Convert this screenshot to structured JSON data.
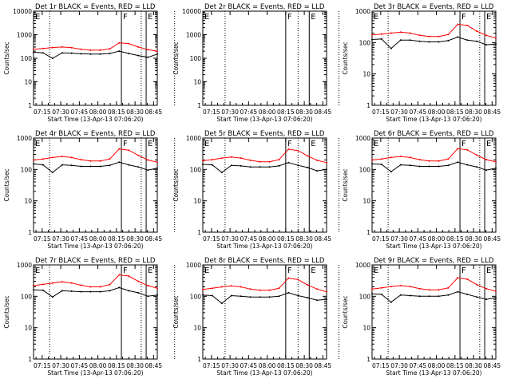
{
  "figure": {
    "xtick_labels": [
      "07:15",
      "07:30",
      "07:45",
      "08:00",
      "08:15",
      "08:30",
      "08:45"
    ],
    "xlabel": "Start Time (13-Apr-13 07:06:20)",
    "ylabel": "Counts/sec",
    "ytick_labels": [
      "1",
      "10",
      "100",
      "1000",
      "10000"
    ],
    "flag_labels": [
      "E",
      "F",
      "E"
    ],
    "colors": {
      "events": "#000000",
      "lld": "#ff0000"
    }
  },
  "chart_data": [
    {
      "type": "line",
      "title": "Det 1r BLACK = Events, RED = LLD",
      "xlabel": "Start Time (13-Apr-13 07:06:20)",
      "ylabel": "Counts/sec",
      "ylog": true,
      "ylim": [
        1,
        10000
      ],
      "x": [
        "07:08",
        "07:15",
        "07:22",
        "07:30",
        "07:38",
        "07:45",
        "07:52",
        "08:00",
        "08:08",
        "08:15",
        "08:22",
        "08:30",
        "08:37",
        "08:45"
      ],
      "series": [
        {
          "name": "Events",
          "color": "#000000",
          "values": [
            180,
            170,
            100,
            170,
            165,
            155,
            150,
            150,
            160,
            200,
            160,
            130,
            110,
            150
          ]
        },
        {
          "name": "LLD",
          "color": "#ff0000",
          "values": [
            240,
            260,
            285,
            300,
            280,
            240,
            220,
            220,
            250,
            450,
            420,
            300,
            230,
            200
          ]
        }
      ],
      "vlines": {
        "dotted_minutes": [
          15,
          89,
          116
        ],
        "solid_minutes": [
          73,
          93
        ]
      }
    },
    {
      "type": "line",
      "title": "Det 2r BLACK = Events, RED = LLD",
      "xlabel": "Start Time (13-Apr-13 07:06:20)",
      "ylabel": "Counts/sec",
      "ylog": true,
      "ylim": [
        1,
        10000
      ],
      "x": [
        "07:08",
        "07:15",
        "07:22",
        "07:30",
        "07:38",
        "07:45",
        "07:52",
        "08:00",
        "08:08",
        "08:15",
        "08:22",
        "08:30",
        "08:37",
        "08:45"
      ],
      "series": [],
      "vlines": {
        "dotted_minutes": [
          20,
          79,
          112
        ],
        "solid_minutes": [
          69,
          88
        ]
      }
    },
    {
      "type": "line",
      "title": "Det 3r BLACK = Events, RED = LLD",
      "xlabel": "Start Time (13-Apr-13 07:06:20)",
      "ylabel": "Counts/sec",
      "ylog": true,
      "ylim": [
        1,
        1000
      ],
      "x": [
        "07:08",
        "07:15",
        "07:22",
        "07:30",
        "07:38",
        "07:45",
        "07:52",
        "08:00",
        "08:08",
        "08:15",
        "08:22",
        "08:30",
        "08:37",
        "08:45"
      ],
      "series": [
        {
          "name": "Events",
          "color": "#000000",
          "values": [
            125,
            130,
            65,
            120,
            120,
            110,
            105,
            105,
            115,
            150,
            120,
            110,
            85,
            90
          ]
        },
        {
          "name": "LLD",
          "color": "#ff0000",
          "values": [
            175,
            185,
            200,
            215,
            200,
            170,
            155,
            155,
            180,
            380,
            350,
            230,
            170,
            140
          ]
        }
      ],
      "vlines": {
        "dotted_minutes": [
          15,
          89,
          116
        ],
        "solid_minutes": [
          73,
          93
        ]
      }
    },
    {
      "type": "line",
      "title": "Det 4r BLACK = Events, RED = LLD",
      "xlabel": "Start Time (13-Apr-13 07:06:20)",
      "ylabel": "Counts/sec",
      "ylog": true,
      "ylim": [
        1,
        1000
      ],
      "x": [
        "07:08",
        "07:15",
        "07:22",
        "07:30",
        "07:38",
        "07:45",
        "07:52",
        "08:00",
        "08:08",
        "08:15",
        "08:22",
        "08:30",
        "08:37",
        "08:45"
      ],
      "series": [
        {
          "name": "Events",
          "color": "#000000",
          "values": [
            150,
            140,
            80,
            140,
            135,
            125,
            125,
            125,
            135,
            170,
            140,
            120,
            95,
            110
          ]
        },
        {
          "name": "LLD",
          "color": "#ff0000",
          "values": [
            200,
            215,
            240,
            260,
            240,
            205,
            185,
            185,
            215,
            450,
            410,
            280,
            200,
            170
          ]
        }
      ],
      "vlines": {
        "dotted_minutes": [
          15,
          89,
          116
        ],
        "solid_minutes": [
          73,
          93
        ]
      }
    },
    {
      "type": "line",
      "title": "Det 5r BLACK = Events, RED = LLD",
      "xlabel": "Start Time (13-Apr-13 07:06:20)",
      "ylabel": "Counts/sec",
      "ylog": true,
      "ylim": [
        1,
        1000
      ],
      "x": [
        "07:08",
        "07:15",
        "07:22",
        "07:30",
        "07:38",
        "07:45",
        "07:52",
        "08:00",
        "08:08",
        "08:15",
        "08:22",
        "08:30",
        "08:37",
        "08:45"
      ],
      "series": [
        {
          "name": "Events",
          "color": "#000000",
          "values": [
            145,
            140,
            80,
            135,
            130,
            120,
            120,
            120,
            130,
            165,
            135,
            115,
            90,
            100
          ]
        },
        {
          "name": "LLD",
          "color": "#ff0000",
          "values": [
            190,
            205,
            230,
            250,
            230,
            195,
            175,
            175,
            205,
            440,
            400,
            270,
            195,
            165
          ]
        }
      ],
      "vlines": {
        "dotted_minutes": [
          20,
          79,
          112
        ],
        "solid_minutes": [
          69,
          88
        ]
      }
    },
    {
      "type": "line",
      "title": "Det 6r BLACK = Events, RED = LLD",
      "xlabel": "Start Time (13-Apr-13 07:06:20)",
      "ylabel": "Counts/sec",
      "ylog": true,
      "ylim": [
        1,
        1000
      ],
      "x": [
        "07:08",
        "07:15",
        "07:22",
        "07:30",
        "07:38",
        "07:45",
        "07:52",
        "08:00",
        "08:08",
        "08:15",
        "08:22",
        "08:30",
        "08:37",
        "08:45"
      ],
      "series": [
        {
          "name": "Events",
          "color": "#000000",
          "values": [
            150,
            145,
            85,
            140,
            135,
            125,
            125,
            125,
            135,
            170,
            140,
            120,
            95,
            110
          ]
        },
        {
          "name": "LLD",
          "color": "#ff0000",
          "values": [
            200,
            215,
            240,
            260,
            240,
            205,
            185,
            185,
            215,
            460,
            420,
            285,
            205,
            175
          ]
        }
      ],
      "vlines": {
        "dotted_minutes": [
          15,
          89,
          116
        ],
        "solid_minutes": [
          73,
          93
        ]
      }
    },
    {
      "type": "line",
      "title": "Det 7r BLACK = Events, RED = LLD",
      "xlabel": "Start Time (13-Apr-13 07:06:20)",
      "ylabel": "Counts/sec",
      "ylog": true,
      "ylim": [
        1,
        1000
      ],
      "x": [
        "07:08",
        "07:15",
        "07:22",
        "07:30",
        "07:38",
        "07:45",
        "07:52",
        "08:00",
        "08:08",
        "08:15",
        "08:22",
        "08:30",
        "08:37",
        "08:45"
      ],
      "series": [
        {
          "name": "Events",
          "color": "#000000",
          "values": [
            160,
            155,
            95,
            150,
            145,
            140,
            140,
            140,
            150,
            190,
            150,
            130,
            100,
            110
          ]
        },
        {
          "name": "LLD",
          "color": "#ff0000",
          "values": [
            220,
            240,
            265,
            290,
            265,
            225,
            200,
            200,
            235,
            480,
            440,
            300,
            220,
            180
          ]
        }
      ],
      "vlines": {
        "dotted_minutes": [
          15,
          89,
          116
        ],
        "solid_minutes": [
          73,
          93
        ]
      }
    },
    {
      "type": "line",
      "title": "Det 8r BLACK = Events, RED = LLD",
      "xlabel": "Start Time (13-Apr-13 07:06:20)",
      "ylabel": "Counts/sec",
      "ylog": true,
      "ylim": [
        1,
        1000
      ],
      "x": [
        "07:08",
        "07:15",
        "07:22",
        "07:30",
        "07:38",
        "07:45",
        "07:52",
        "08:00",
        "08:08",
        "08:15",
        "08:22",
        "08:30",
        "08:37",
        "08:45"
      ],
      "series": [
        {
          "name": "Events",
          "color": "#000000",
          "values": [
            110,
            105,
            60,
            105,
            100,
            95,
            95,
            95,
            100,
            130,
            105,
            90,
            75,
            80
          ]
        },
        {
          "name": "LLD",
          "color": "#ff0000",
          "values": [
            165,
            180,
            200,
            215,
            200,
            170,
            155,
            155,
            180,
            380,
            340,
            230,
            170,
            140
          ]
        }
      ],
      "vlines": {
        "dotted_minutes": [
          20,
          79,
          112
        ],
        "solid_minutes": [
          69,
          88
        ]
      }
    },
    {
      "type": "line",
      "title": "Det 9r BLACK = Events, RED = LLD",
      "xlabel": "Start Time (13-Apr-13 07:06:20)",
      "ylabel": "Counts/sec",
      "ylog": true,
      "ylim": [
        1,
        1000
      ],
      "x": [
        "07:08",
        "07:15",
        "07:22",
        "07:30",
        "07:38",
        "07:45",
        "07:52",
        "08:00",
        "08:08",
        "08:15",
        "08:22",
        "08:30",
        "08:37",
        "08:45"
      ],
      "series": [
        {
          "name": "Events",
          "color": "#000000",
          "values": [
            120,
            115,
            65,
            110,
            105,
            100,
            100,
            100,
            110,
            140,
            115,
            95,
            80,
            90
          ]
        },
        {
          "name": "LLD",
          "color": "#ff0000",
          "values": [
            170,
            185,
            205,
            220,
            205,
            175,
            160,
            160,
            185,
            390,
            350,
            235,
            175,
            145
          ]
        }
      ],
      "vlines": {
        "dotted_minutes": [
          15,
          89,
          116
        ],
        "solid_minutes": [
          73,
          93
        ]
      }
    }
  ]
}
